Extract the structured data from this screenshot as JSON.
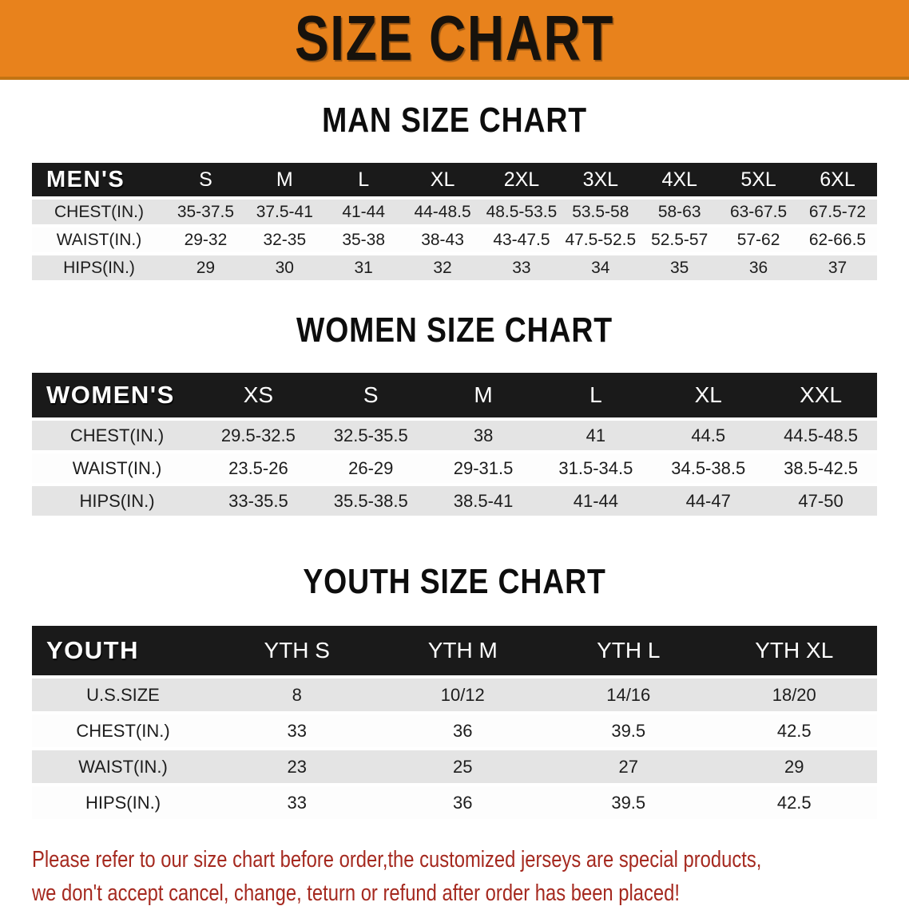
{
  "banner": {
    "title": "SIZE CHART"
  },
  "sections": [
    {
      "heading": "MAN SIZE CHART",
      "header_label": "MEN'S",
      "columns": [
        "S",
        "M",
        "L",
        "XL",
        "2XL",
        "3XL",
        "4XL",
        "5XL",
        "6XL"
      ],
      "rows": [
        {
          "label": "CHEST(IN.)",
          "values": [
            "35-37.5",
            "37.5-41",
            "41-44",
            "44-48.5",
            "48.5-53.5",
            "53.5-58",
            "58-63",
            "63-67.5",
            "67.5-72"
          ]
        },
        {
          "label": "WAIST(IN.)",
          "values": [
            "29-32",
            "32-35",
            "35-38",
            "38-43",
            "43-47.5",
            "47.5-52.5",
            "52.5-57",
            "57-62",
            "62-66.5"
          ]
        },
        {
          "label": "HIPS(IN.)",
          "values": [
            "29",
            "30",
            "31",
            "32",
            "33",
            "34",
            "35",
            "36",
            "37"
          ]
        }
      ]
    },
    {
      "heading": "WOMEN SIZE CHART",
      "header_label": "WOMEN'S",
      "columns": [
        "XS",
        "S",
        "M",
        "L",
        "XL",
        "XXL"
      ],
      "rows": [
        {
          "label": "CHEST(IN.)",
          "values": [
            "29.5-32.5",
            "32.5-35.5",
            "38",
            "41",
            "44.5",
            "44.5-48.5"
          ]
        },
        {
          "label": "WAIST(IN.)",
          "values": [
            "23.5-26",
            "26-29",
            "29-31.5",
            "31.5-34.5",
            "34.5-38.5",
            "38.5-42.5"
          ]
        },
        {
          "label": "HIPS(IN.)",
          "values": [
            "33-35.5",
            "35.5-38.5",
            "38.5-41",
            "41-44",
            "44-47",
            "47-50"
          ]
        }
      ]
    },
    {
      "heading": "YOUTH SIZE CHART",
      "header_label": "YOUTH",
      "columns": [
        "YTH S",
        "YTH M",
        "YTH L",
        "YTH XL"
      ],
      "rows": [
        {
          "label": "U.S.SIZE",
          "values": [
            "8",
            "10/12",
            "14/16",
            "18/20"
          ]
        },
        {
          "label": "CHEST(IN.)",
          "values": [
            "33",
            "36",
            "39.5",
            "42.5"
          ]
        },
        {
          "label": "WAIST(IN.)",
          "values": [
            "23",
            "25",
            "27",
            "29"
          ]
        },
        {
          "label": "HIPS(IN.)",
          "values": [
            "33",
            "36",
            "39.5",
            "42.5"
          ]
        }
      ]
    }
  ],
  "disclaimer": {
    "line1": "Please refer to our size chart before order,the customized jerseys are special products,",
    "line2": "we don't accept cancel, change, teturn or refund after order has been placed!"
  },
  "colors": {
    "banner_bg": "#e8821c",
    "banner_edge": "#c27413",
    "banner_text": "#17120c",
    "heading_color": "#0d0d0d",
    "header_bg": "#1a1a1a",
    "row_alt_bg": "#e4e4e4",
    "row_bg": "#fdfdfd",
    "cell_text": "#1d1d1d",
    "disclaimer_color": "#a5291f"
  }
}
